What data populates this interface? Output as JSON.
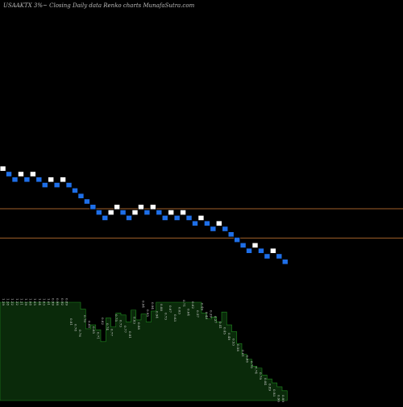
{
  "header": {
    "text": "USAAKTX  3%~  Closing Daily data  Renko  charts MunafaSutra.com"
  },
  "colors": {
    "background": "#000000",
    "up_brick": "#ffffff",
    "down_brick": "#1e6fe8",
    "brick_edge": "#000000",
    "level_line": "#a0602a",
    "volume_fill": "#0a2a0a",
    "volume_edge": "#1f8a1f",
    "volume_label": "#d9d9d9"
  },
  "chart_data": {
    "type": "renko",
    "title": "USAAKTX 3%~ Closing Daily data Renko charts MunafaSutra.com",
    "bricks": [
      {
        "i": 0,
        "level": 22,
        "dir": "up"
      },
      {
        "i": 1,
        "level": 21,
        "dir": "down"
      },
      {
        "i": 2,
        "level": 20,
        "dir": "down"
      },
      {
        "i": 3,
        "level": 21,
        "dir": "up"
      },
      {
        "i": 4,
        "level": 20,
        "dir": "down"
      },
      {
        "i": 5,
        "level": 21,
        "dir": "up"
      },
      {
        "i": 6,
        "level": 20,
        "dir": "down"
      },
      {
        "i": 7,
        "level": 19,
        "dir": "down"
      },
      {
        "i": 8,
        "level": 20,
        "dir": "up"
      },
      {
        "i": 9,
        "level": 19,
        "dir": "down"
      },
      {
        "i": 10,
        "level": 20,
        "dir": "up"
      },
      {
        "i": 11,
        "level": 19,
        "dir": "down"
      },
      {
        "i": 12,
        "level": 18,
        "dir": "down"
      },
      {
        "i": 13,
        "level": 17,
        "dir": "down"
      },
      {
        "i": 14,
        "level": 16,
        "dir": "down"
      },
      {
        "i": 15,
        "level": 15,
        "dir": "down"
      },
      {
        "i": 16,
        "level": 14,
        "dir": "down"
      },
      {
        "i": 17,
        "level": 13,
        "dir": "down"
      },
      {
        "i": 18,
        "level": 14,
        "dir": "up"
      },
      {
        "i": 19,
        "level": 15,
        "dir": "up"
      },
      {
        "i": 20,
        "level": 14,
        "dir": "down"
      },
      {
        "i": 21,
        "level": 13,
        "dir": "down"
      },
      {
        "i": 22,
        "level": 14,
        "dir": "up"
      },
      {
        "i": 23,
        "level": 15,
        "dir": "up"
      },
      {
        "i": 24,
        "level": 14,
        "dir": "down"
      },
      {
        "i": 25,
        "level": 15,
        "dir": "up"
      },
      {
        "i": 26,
        "level": 14,
        "dir": "down"
      },
      {
        "i": 27,
        "level": 13,
        "dir": "down"
      },
      {
        "i": 28,
        "level": 14,
        "dir": "up"
      },
      {
        "i": 29,
        "level": 13,
        "dir": "down"
      },
      {
        "i": 30,
        "level": 14,
        "dir": "up"
      },
      {
        "i": 31,
        "level": 13,
        "dir": "down"
      },
      {
        "i": 32,
        "level": 12,
        "dir": "down"
      },
      {
        "i": 33,
        "level": 13,
        "dir": "up"
      },
      {
        "i": 34,
        "level": 12,
        "dir": "down"
      },
      {
        "i": 35,
        "level": 11,
        "dir": "down"
      },
      {
        "i": 36,
        "level": 12,
        "dir": "up"
      },
      {
        "i": 37,
        "level": 11,
        "dir": "down"
      },
      {
        "i": 38,
        "level": 10,
        "dir": "down"
      },
      {
        "i": 39,
        "level": 9,
        "dir": "down"
      },
      {
        "i": 40,
        "level": 8,
        "dir": "down"
      },
      {
        "i": 41,
        "level": 7,
        "dir": "down"
      },
      {
        "i": 42,
        "level": 8,
        "dir": "up"
      },
      {
        "i": 43,
        "level": 7,
        "dir": "down"
      },
      {
        "i": 44,
        "level": 6,
        "dir": "down"
      },
      {
        "i": 45,
        "level": 7,
        "dir": "up"
      },
      {
        "i": 46,
        "level": 6,
        "dir": "down"
      },
      {
        "i": 47,
        "level": 5,
        "dir": "down"
      }
    ],
    "reference_lines": [
      {
        "level": 14.7
      },
      {
        "level": 9.35
      }
    ],
    "volume_labels": [
      "1.29",
      "1.28",
      "1.22",
      "1.22",
      "1.21",
      "1.19",
      "1.08",
      "1.05",
      "1.04",
      "1.03",
      "1.01",
      "0.99",
      "0.98",
      "0.92",
      "0.89",
      "0.81",
      "0.78",
      "0.76",
      "0.70",
      "0.66",
      "0.65",
      "0.71",
      "0.82",
      "0.74",
      "0.77",
      "0.75",
      "0.73",
      "0.77",
      "0.81",
      "0.83",
      "0.88",
      "0.94",
      "0.95",
      "0.94",
      "0.94",
      "0.88",
      "0.73",
      "0.67",
      "0.63",
      "0.63",
      "0.71",
      "0.64",
      "0.62",
      "0.57",
      "0.49",
      "0.43",
      "0.39",
      "0.37",
      "0.41",
      "0.45",
      "0.49",
      "0.53",
      "0.58",
      "0.61",
      "0.66",
      "0.70",
      "0.74",
      "0.79",
      "0.84",
      "0.89",
      "0.93",
      "0.96",
      "0.99"
    ],
    "volume": [
      1.0,
      1.0,
      1.0,
      1.0,
      1.0,
      1.0,
      1.0,
      1.0,
      1.0,
      1.0,
      1.0,
      1.0,
      1.0,
      1.0,
      1.0,
      1.0,
      0.93,
      0.73,
      0.77,
      0.72,
      0.6,
      0.84,
      0.75,
      0.89,
      0.87,
      0.8,
      0.92,
      0.82,
      0.88,
      0.8,
      0.91,
      1.0,
      1.0,
      1.0,
      1.0,
      1.0,
      1.0,
      1.0,
      1.0,
      1.0,
      0.89,
      0.83,
      0.85,
      0.8,
      0.9,
      0.77,
      0.7,
      0.58,
      0.47,
      0.42,
      0.35,
      0.33,
      0.26,
      0.22,
      0.18,
      0.14,
      0.1
    ]
  }
}
